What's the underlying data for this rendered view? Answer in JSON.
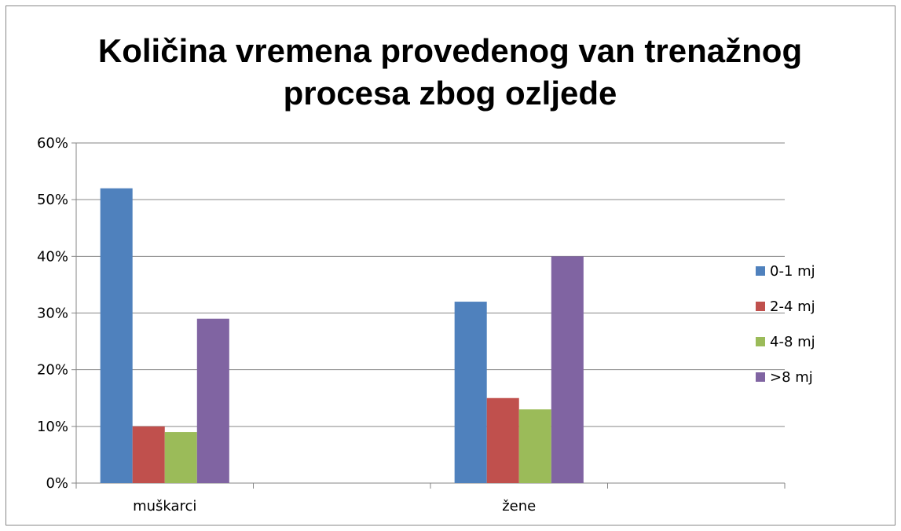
{
  "chart_data": {
    "type": "bar",
    "title": "Količina vremena provedenog van trenažnog procesa zbog ozljede",
    "categories": [
      "muškarci",
      null,
      "žene",
      null
    ],
    "series": [
      {
        "name": "0-1 mj",
        "color": "#4f81bd",
        "values": [
          52,
          null,
          32,
          null
        ]
      },
      {
        "name": "2-4 mj",
        "color": "#c0504d",
        "values": [
          10,
          null,
          15,
          null
        ]
      },
      {
        "name": "4-8 mj",
        "color": "#9bbb59",
        "values": [
          9,
          null,
          13,
          null
        ]
      },
      {
        "name": ">8 mj",
        "color": "#8064a2",
        "values": [
          29,
          null,
          40,
          null
        ]
      }
    ],
    "ylim": [
      0,
      60
    ],
    "yticks": [
      {
        "value": 0,
        "label": "0%"
      },
      {
        "value": 10,
        "label": "10%"
      },
      {
        "value": 20,
        "label": "20%"
      },
      {
        "value": 30,
        "label": "30%"
      },
      {
        "value": 40,
        "label": "40%"
      },
      {
        "value": 50,
        "label": "50%"
      },
      {
        "value": 60,
        "label": "60%"
      }
    ],
    "grid": true,
    "legend": "right"
  }
}
